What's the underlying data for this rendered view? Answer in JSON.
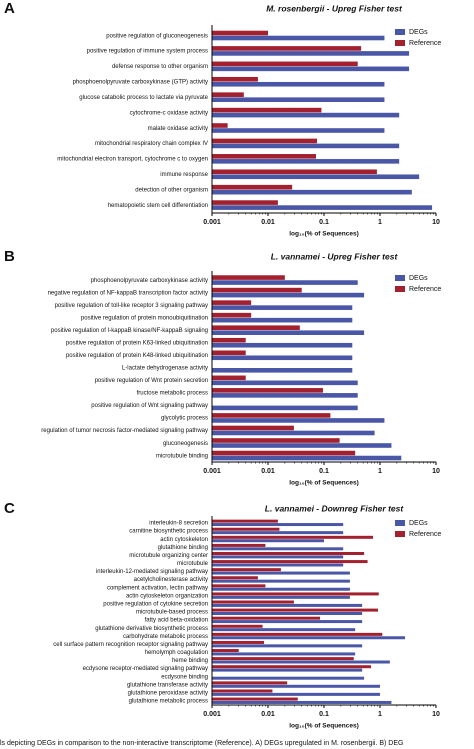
{
  "chart_data": [
    {
      "type": "bar",
      "orientation": "horizontal",
      "panel_label": "A",
      "title": "M. rosenbergii - Upreg Fisher test",
      "x_label": "log₁₀(% of Sequences)",
      "log_scale": true,
      "categories": [
        "positive regulation of gluconeogenesis",
        "positive regulation of immune system process",
        "defense response to other organism",
        "phosphoenolpyruvate carboxykinase (GTP) activity",
        "glucose catabolic process to lactate via pyruvate",
        "cytochrome-c oxidase activity",
        "malate oxidase activity",
        "mitochondrial respiratory chain complex IV",
        "mitochondrial electron transport, cytochrome c to oxygen",
        "immune response",
        "detection of other organism",
        "hematopoietic stem cell differentiation"
      ],
      "series": [
        {
          "name": "DEGs",
          "color": "#4a56a6",
          "values": [
            1.2,
            3.3,
            3.3,
            1.2,
            1.2,
            2.2,
            1.2,
            2.2,
            2.2,
            5,
            3.7,
            8.5
          ]
        },
        {
          "name": "Reference",
          "color": "#a3202e",
          "values": [
            0.01,
            0.46,
            0.4,
            0.0066,
            0.0037,
            0.09,
            0.0019,
            0.075,
            0.072,
            0.88,
            0.027,
            0.015
          ]
        }
      ],
      "xlim": [
        0.001,
        10
      ],
      "xticks": [
        0.001,
        0.01,
        0.1,
        1,
        10
      ],
      "legend": "top-right"
    },
    {
      "type": "bar",
      "orientation": "horizontal",
      "panel_label": "B",
      "title": "L. vannamei - Upreg Fisher test",
      "x_label": "log₁₀(% of Sequences)",
      "log_scale": true,
      "categories": [
        "phosphoenolpyruvate carboxykinase activity",
        "negative regulation of NF-kappaB transcription factor activity",
        "positive regulation of toll-like receptor 3 signaling pathway",
        "positive regulation of protein monoubiquitination",
        "positive regulation of I-kappaB kinase/NF-kappaB signaling",
        "positive regulation of protein K63-linked ubiquitination",
        "positive regulation of protein K48-linked ubiquitination",
        "L-lactate dehydrogenase activity",
        "positive regulation of Wnt protein secretion",
        "fructose metabolic process",
        "positive regulation of Wnt signaling pathway",
        "glycolytic process",
        "regulation of tumor necrosis factor-mediated signaling pathway",
        "gluconeogenesis",
        "microtubule binding"
      ],
      "series": [
        {
          "name": "DEGs",
          "color": "#4a56a6",
          "values": [
            0.4,
            0.52,
            0.32,
            0.32,
            0.52,
            0.32,
            0.32,
            0.32,
            0.4,
            0.4,
            0.4,
            1.2,
            0.8,
            1.6,
            2.4
          ]
        },
        {
          "name": "Reference",
          "color": "#a3202e",
          "values": [
            0.02,
            0.04,
            0.005,
            0.005,
            0.037,
            0.004,
            0.004,
            null,
            0.004,
            0.096,
            null,
            0.13,
            0.029,
            0.19,
            0.36
          ]
        }
      ],
      "xlim": [
        0.001,
        10
      ],
      "xticks": [
        0.001,
        0.01,
        0.1,
        1,
        10
      ],
      "legend": "top-right"
    },
    {
      "type": "bar",
      "orientation": "horizontal",
      "panel_label": "C",
      "title": "L. vannamei - Downreg Fisher test",
      "x_label": "log₁₀(% of Sequences)",
      "log_scale": true,
      "categories": [
        "interleukin-8 secretion",
        "carnitine biosynthetic process",
        "actin cytoskeleton",
        "glutathione binding",
        "microtubule organizing center",
        "microtubule",
        "interleukin-12-mediated signaling pathway",
        "acetylcholinesterase activity",
        "complement activation, lectin pathway",
        "actin cytoskeleton organization",
        "positive regulation of cytokine secretion",
        "microtubule-based process",
        "fatty acid beta-oxidation",
        "glutathione derivative biosynthetic process",
        "carbohydrate metabolic process",
        "cell surface pattern recognition receptor signaling pathway",
        "hemolymph coagulation",
        "heme binding",
        "ecdysone receptor-mediated signaling pathway",
        "ecdysone binding",
        "glutathione transferase activity",
        "glutathione peroxidase activity",
        "glutathione metabolic process"
      ],
      "series": [
        {
          "name": "DEGs",
          "color": "#4a56a6",
          "values": [
            0.22,
            0.22,
            0.1,
            0.22,
            0.22,
            0.22,
            0.29,
            0.29,
            0.29,
            0.29,
            0.48,
            0.48,
            0.48,
            0.36,
            2.8,
            0.48,
            0.36,
            1.5,
            0.48,
            0.52,
            1,
            1,
            1.6
          ]
        },
        {
          "name": "Reference",
          "color": "#a3202e",
          "values": [
            0.015,
            0.016,
            0.75,
            0.009,
            0.52,
            0.6,
            0.017,
            0.0066,
            0.009,
            0.95,
            0.029,
            0.92,
            0.085,
            0.008,
            1.1,
            0.0085,
            0.003,
            0.34,
            0.69,
            null,
            0.022,
            0.012,
            0.034
          ]
        }
      ],
      "xlim": [
        0.001,
        10
      ],
      "xticks": [
        0.001,
        0.01,
        0.1,
        1,
        10
      ],
      "legend": "top-right"
    }
  ],
  "caption": "ls depicting DEGs in comparison to the non-interactive transcriptome (Reference). A) DEGs upregulated in M. rosenbergii. B) DEG"
}
